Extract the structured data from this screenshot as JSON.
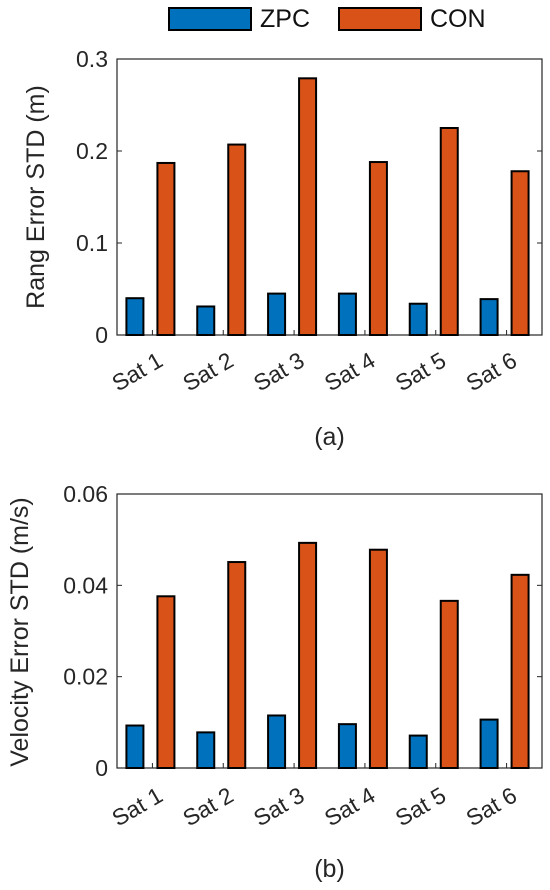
{
  "colors": {
    "zpc": "#0072BD",
    "con": "#D95319"
  },
  "legend": {
    "items": [
      {
        "label": "ZPC"
      },
      {
        "label": "CON"
      }
    ]
  },
  "chart_data": [
    {
      "type": "bar",
      "categories": [
        "Sat 1",
        "Sat 2",
        "Sat 3",
        "Sat 4",
        "Sat 5",
        "Sat 6"
      ],
      "series": [
        {
          "name": "ZPC",
          "values": [
            0.04,
            0.031,
            0.045,
            0.045,
            0.034,
            0.039
          ]
        },
        {
          "name": "CON",
          "values": [
            0.187,
            0.207,
            0.279,
            0.188,
            0.225,
            0.178
          ]
        }
      ],
      "ylabel": "Rang Error STD (m)",
      "ylim": [
        0,
        0.3
      ],
      "yticks": [
        0,
        0.1,
        0.2,
        0.3
      ],
      "ytick_labels": [
        "0",
        "0.1",
        "0.2",
        "0.3"
      ],
      "caption": "(a)",
      "grid": false,
      "legend_position": "top-center"
    },
    {
      "type": "bar",
      "categories": [
        "Sat 1",
        "Sat 2",
        "Sat 3",
        "Sat 4",
        "Sat 5",
        "Sat 6"
      ],
      "series": [
        {
          "name": "ZPC",
          "values": [
            0.0093,
            0.0078,
            0.0115,
            0.0096,
            0.0071,
            0.0106
          ]
        },
        {
          "name": "CON",
          "values": [
            0.0376,
            0.0451,
            0.0493,
            0.0478,
            0.0366,
            0.0423
          ]
        }
      ],
      "ylabel": "Velocity Error STD (m/s)",
      "ylim": [
        0,
        0.06
      ],
      "yticks": [
        0,
        0.02,
        0.04,
        0.06
      ],
      "ytick_labels": [
        "0",
        "0.02",
        "0.04",
        "0.06"
      ],
      "caption": "(b)",
      "grid": false,
      "legend_position": "top-center"
    }
  ]
}
